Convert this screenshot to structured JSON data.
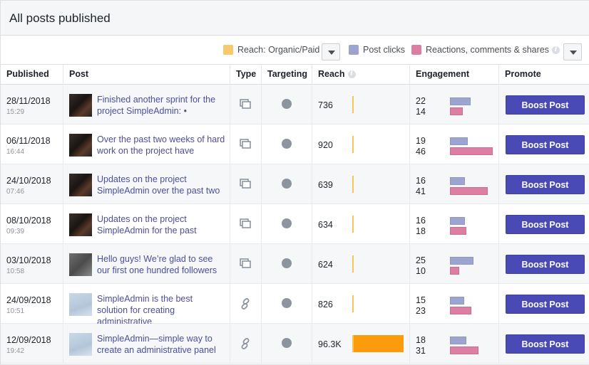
{
  "page": {
    "title": "All posts published"
  },
  "legend": {
    "reach_label": "Reach: Organic/Paid",
    "clicks_label": "Post clicks",
    "reactions_label": "Reactions, comments & shares",
    "colors": {
      "reach": "#f7c96b",
      "clicks": "#9ca4cf",
      "reactions": "#dd7fa3",
      "paid": "#fc9b0b"
    }
  },
  "columns": [
    "Published",
    "Post",
    "Type",
    "Targeting",
    "Reach",
    "Engagement",
    "Promote"
  ],
  "reach_max": 96300,
  "rows": [
    {
      "date": "28/11/2018",
      "time": "15:29",
      "post": "Finished another sprint for the project SimpleAdmin:        •",
      "type": "album-icon",
      "targeting": "globe-icon",
      "reach": "736",
      "reach_value": 736,
      "clicks": 22,
      "reactions": 14,
      "thumb": "dark",
      "boost": "Boost Post"
    },
    {
      "date": "06/11/2018",
      "time": "16:44",
      "post": "Over the past two weeks of hard work on the project have",
      "type": "album-icon",
      "targeting": "globe-icon",
      "reach": "920",
      "reach_value": 920,
      "clicks": 19,
      "reactions": 46,
      "thumb": "dark",
      "boost": "Boost Post"
    },
    {
      "date": "24/10/2018",
      "time": "07:46",
      "post": "Updates on the project SimpleAdmin over the past two",
      "type": "album-icon",
      "targeting": "globe-icon",
      "reach": "639",
      "reach_value": 639,
      "clicks": 16,
      "reactions": 41,
      "thumb": "dark",
      "boost": "Boost Post"
    },
    {
      "date": "08/10/2018",
      "time": "09:39",
      "post": "Updates on the project SimpleAdmin for the past",
      "type": "album-icon",
      "targeting": "globe-icon",
      "reach": "634",
      "reach_value": 634,
      "clicks": 16,
      "reactions": 18,
      "thumb": "dark",
      "boost": "Boost Post"
    },
    {
      "date": "03/10/2018",
      "time": "10:58",
      "post": "Hello guys! We’re glad to see our first one hundred followers",
      "type": "album-icon",
      "targeting": "globe-icon",
      "reach": "624",
      "reach_value": 624,
      "clicks": 25,
      "reactions": 10,
      "thumb": "grey",
      "boost": "Boost Post"
    },
    {
      "date": "24/09/2018",
      "time": "10:51",
      "post": "SimpleAdmin is the best solution for creating administrative",
      "type": "link-icon",
      "targeting": "globe-icon",
      "reach": "826",
      "reach_value": 826,
      "clicks": 15,
      "reactions": 23,
      "thumb": "sky",
      "boost": "Boost Post"
    },
    {
      "date": "12/09/2018",
      "time": "19:42",
      "post": "SimpleAdmin—simple way to create an administrative panel",
      "type": "link-icon",
      "targeting": "globe-icon",
      "reach": "96.3K",
      "reach_value": 96300,
      "clicks": 18,
      "reactions": 31,
      "thumb": "sky",
      "boost": "Boost Post"
    }
  ]
}
